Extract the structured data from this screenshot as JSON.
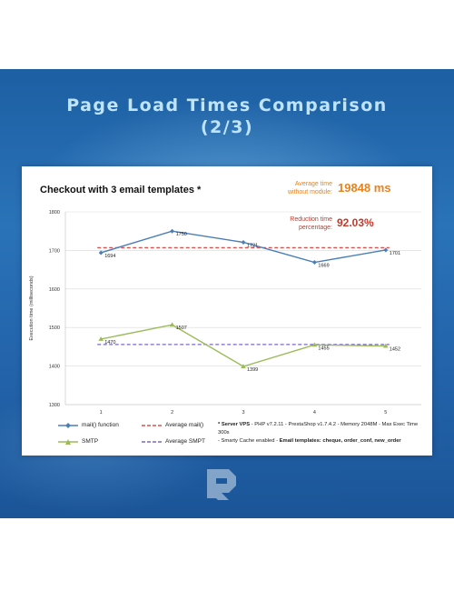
{
  "banner": {
    "title_line1": "Page Load Times Comparison",
    "title_line2": "(2/3)"
  },
  "stats": {
    "avg_label_line1": "Average time",
    "avg_label_line2": "without module:",
    "avg_value": "19848 ms",
    "red_label_line1": "Reduction time",
    "red_label_line2": "percentage:",
    "red_value": "92.03%",
    "orange": "#e8821e",
    "red": "#c0392b"
  },
  "legend": {
    "mail": "mail() function",
    "avg_mail": "Average mail()",
    "smtp": "SMTP",
    "avg_smtp": "Average SMPT"
  },
  "note": {
    "bold1": "* Server VPS",
    "text1": " - PHP v7.2.11 - PrestaShop v1.7.4.2 - Memory 2048M - Max Exec Time 300s",
    "text2": "- Smarty Cache enabled - ",
    "bold2": "Email  templates: cheque, order_conf, new_order"
  },
  "chart_data": {
    "type": "line",
    "title": "Checkout with 3 email templates *",
    "ylabel": "Execution time (milliseconds)",
    "xlabel": "",
    "categories": [
      "1",
      "2",
      "3",
      "4",
      "5"
    ],
    "ylim": [
      1300,
      1800
    ],
    "yticks": [
      1300,
      1400,
      1500,
      1600,
      1700,
      1800
    ],
    "grid": true,
    "legend_position": "bottom-left",
    "series": [
      {
        "name": "mail() function",
        "values": [
          1694,
          1750,
          1721,
          1669,
          1701
        ],
        "color": "#4a7ebb",
        "marker": "diamond"
      },
      {
        "name": "SMTP",
        "values": [
          1470,
          1507,
          1399,
          1455,
          1452
        ],
        "color": "#9bbb59",
        "marker": "triangle"
      }
    ],
    "averages": [
      {
        "name": "Average mail()",
        "value": 1707,
        "color": "#d9534f"
      },
      {
        "name": "Average SMPT",
        "value": 1456,
        "color": "#7b68c9"
      }
    ],
    "point_labels": [
      [
        "1694",
        "1750",
        "1721",
        "1669",
        "1701"
      ],
      [
        "1470",
        "1507",
        "1399",
        "1455",
        "1452"
      ]
    ]
  }
}
